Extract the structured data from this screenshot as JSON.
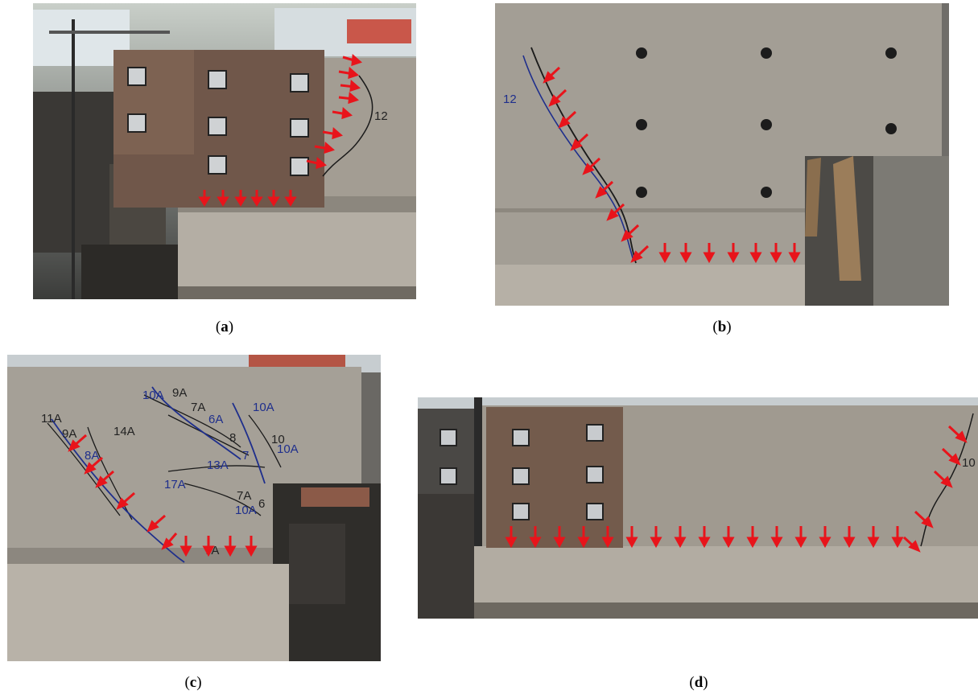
{
  "figure": {
    "panels": [
      {
        "id": "a",
        "caption_letter": "a",
        "crack_labels": [
          "12"
        ]
      },
      {
        "id": "b",
        "caption_letter": "b",
        "crack_labels": [
          "12"
        ]
      },
      {
        "id": "c",
        "caption_letter": "c",
        "crack_labels": [
          "11A",
          "9A",
          "8A",
          "14A",
          "10A",
          "9A",
          "7A",
          "6A",
          "10A",
          "8",
          "10",
          "13A",
          "7",
          "17A",
          "10A",
          "7A",
          "6",
          "10A",
          "7A"
        ]
      },
      {
        "id": "d",
        "caption_letter": "d",
        "crack_labels": [
          "10"
        ]
      }
    ],
    "colors": {
      "arrow": "#e8141b",
      "crack_black": "#1a1a1a",
      "crack_blue": "#1f2f8c",
      "concrete": "#9a948b",
      "steel": "#6d5a4c"
    }
  }
}
